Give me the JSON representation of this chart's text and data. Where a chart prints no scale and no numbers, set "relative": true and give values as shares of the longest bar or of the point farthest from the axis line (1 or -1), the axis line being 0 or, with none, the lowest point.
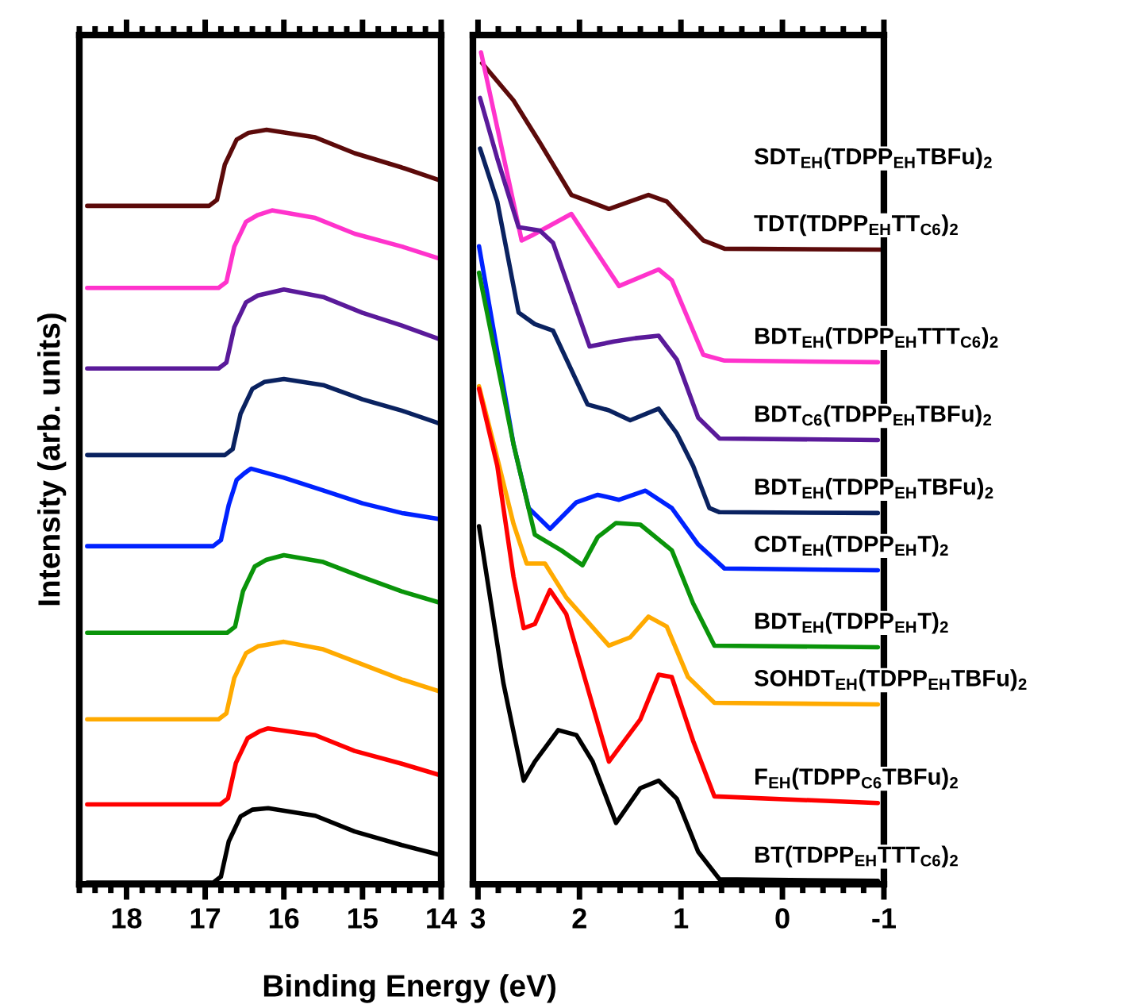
{
  "chart_data": [
    {
      "type": "line",
      "relative": true,
      "xlim": [
        18.6,
        14
      ],
      "xticks": [
        18,
        17,
        16,
        15,
        14
      ],
      "tick_labels": "x",
      "xlabel": "Binding Energy (eV)",
      "ylabel": "Intensity (arb. units)",
      "legend": false,
      "grid": false,
      "series": [
        {
          "color": "#5c0a0a",
          "x": [
            18.5,
            16.95,
            16.85,
            16.75,
            16.6,
            16.45,
            16.22,
            15.6,
            15.1,
            14.5,
            14.02
          ],
          "values": [
            0.899,
            0.899,
            0.907,
            0.954,
            0.987,
            0.996,
            1.0,
            0.99,
            0.969,
            0.95,
            0.933
          ]
        },
        {
          "color": "#ff33cc",
          "x": [
            18.5,
            16.83,
            16.73,
            16.63,
            16.48,
            16.33,
            16.15,
            15.6,
            15.1,
            14.5,
            14.02
          ],
          "values": [
            0.79,
            0.79,
            0.798,
            0.845,
            0.878,
            0.887,
            0.893,
            0.883,
            0.862,
            0.845,
            0.829
          ]
        },
        {
          "color": "#5a1a9a",
          "x": [
            18.5,
            16.83,
            16.73,
            16.63,
            16.48,
            16.33,
            16.0,
            15.5,
            15.0,
            14.5,
            14.02
          ],
          "values": [
            0.683,
            0.683,
            0.691,
            0.738,
            0.771,
            0.78,
            0.788,
            0.778,
            0.757,
            0.74,
            0.722
          ]
        },
        {
          "color": "#0a2260",
          "x": [
            18.5,
            16.75,
            16.65,
            16.55,
            16.4,
            16.25,
            16.0,
            15.5,
            15.0,
            14.5,
            14.02
          ],
          "values": [
            0.568,
            0.568,
            0.576,
            0.623,
            0.656,
            0.665,
            0.669,
            0.661,
            0.642,
            0.627,
            0.61
          ]
        },
        {
          "color": "#0022ff",
          "x": [
            18.5,
            16.9,
            16.8,
            16.7,
            16.6,
            16.5,
            16.42,
            16.0,
            15.5,
            15.0,
            14.5,
            14.02
          ],
          "values": [
            0.447,
            0.447,
            0.455,
            0.502,
            0.535,
            0.544,
            0.55,
            0.538,
            0.521,
            0.504,
            0.491,
            0.483
          ]
        },
        {
          "color": "#0a940a",
          "x": [
            18.5,
            16.72,
            16.62,
            16.52,
            16.37,
            16.22,
            16.0,
            15.5,
            15.0,
            14.5,
            14.02
          ],
          "values": [
            0.332,
            0.332,
            0.34,
            0.387,
            0.42,
            0.429,
            0.435,
            0.426,
            0.406,
            0.387,
            0.372
          ]
        },
        {
          "color": "#ffaa00",
          "x": [
            18.5,
            16.83,
            16.73,
            16.63,
            16.48,
            16.33,
            16.0,
            15.5,
            15.0,
            14.5,
            14.02
          ],
          "values": [
            0.217,
            0.217,
            0.225,
            0.272,
            0.305,
            0.314,
            0.32,
            0.31,
            0.29,
            0.27,
            0.254
          ]
        },
        {
          "color": "#ff0000",
          "x": [
            18.5,
            16.81,
            16.71,
            16.61,
            16.46,
            16.31,
            16.2,
            15.6,
            15.1,
            14.5,
            14.02
          ],
          "values": [
            0.104,
            0.104,
            0.112,
            0.159,
            0.192,
            0.201,
            0.205,
            0.196,
            0.175,
            0.158,
            0.143
          ]
        },
        {
          "color": "#000000",
          "x": [
            18.5,
            16.9,
            16.8,
            16.7,
            16.55,
            16.4,
            16.2,
            15.6,
            15.1,
            14.5,
            14.02
          ],
          "values": [
            0,
            0,
            0.008,
            0.055,
            0.088,
            0.097,
            0.099,
            0.089,
            0.068,
            0.05,
            0.037
          ]
        }
      ]
    },
    {
      "type": "line",
      "relative": true,
      "xlim": [
        3.05,
        -1
      ],
      "xticks": [
        3,
        2,
        1,
        0,
        -1
      ],
      "tick_labels": "x",
      "legend": false,
      "grid": false,
      "annotations": [
        "SDT$_{EH}$(TDPP$_{EH}$TBFu)$_{2}$"
      ],
      "series": [
        {
          "name": "TDT(TDPP$_{EH}$TT$_{C6}$)$_{2}$",
          "color": "#5c0a0a",
          "x": [
            2.96,
            2.65,
            2.39,
            2.08,
            1.71,
            1.32,
            1.14,
            0.78,
            0.57,
            -0.97
          ],
          "values": [
            0.987,
            0.942,
            0.891,
            0.828,
            0.811,
            0.828,
            0.82,
            0.773,
            0.763,
            0.762
          ]
        },
        {
          "name": "BDT$_{EH}$(TDPP$_{EH}$TTT$_{C6}$)$_{2}$",
          "color": "#ff33cc",
          "x": [
            2.97,
            2.57,
            2.47,
            2.08,
            1.61,
            1.22,
            1.09,
            0.78,
            0.57,
            -0.94
          ],
          "values": [
            1.0,
            0.773,
            0.779,
            0.805,
            0.718,
            0.738,
            0.725,
            0.635,
            0.628,
            0.626
          ]
        },
        {
          "name": "BDT$_{C6}$(TDPP$_{EH}$TBFu)$_{2}$",
          "color": "#5a1a9a",
          "x": [
            2.98,
            2.81,
            2.6,
            2.39,
            2.26,
            1.9,
            1.66,
            1.45,
            1.22,
            1.04,
            0.83,
            0.62,
            -0.94
          ],
          "values": [
            0.945,
            0.872,
            0.789,
            0.785,
            0.77,
            0.645,
            0.651,
            0.655,
            0.658,
            0.629,
            0.559,
            0.534,
            0.532
          ]
        },
        {
          "name": "BDT$_{EH}$(TDPP$_{EH}$TBFu)$_{2}$",
          "color": "#0a2260",
          "x": [
            2.98,
            2.81,
            2.6,
            2.44,
            2.26,
            1.92,
            1.71,
            1.5,
            1.22,
            1.04,
            0.88,
            0.72,
            0.62,
            -0.94
          ],
          "values": [
            0.884,
            0.82,
            0.686,
            0.672,
            0.664,
            0.575,
            0.568,
            0.556,
            0.57,
            0.54,
            0.501,
            0.45,
            0.445,
            0.444
          ]
        },
        {
          "name": "CDT$_{EH}$(TDPP$_{EH}$T)$_{2}$",
          "color": "#0022ff",
          "x": [
            2.99,
            2.65,
            2.5,
            2.29,
            2.03,
            1.82,
            1.61,
            1.35,
            1.09,
            0.83,
            0.57,
            -0.94
          ],
          "values": [
            0.766,
            0.527,
            0.45,
            0.425,
            0.457,
            0.466,
            0.46,
            0.471,
            0.45,
            0.406,
            0.377,
            0.375
          ]
        },
        {
          "name": "BDT$_{EH}$(TDPP$_{EH}$T)$_{2}$",
          "color": "#0a940a",
          "x": [
            2.99,
            2.65,
            2.44,
            2.18,
            1.97,
            1.82,
            1.64,
            1.4,
            1.09,
            0.88,
            0.67,
            -0.94
          ],
          "values": [
            0.734,
            0.527,
            0.418,
            0.399,
            0.381,
            0.415,
            0.432,
            0.43,
            0.399,
            0.335,
            0.284,
            0.282
          ]
        },
        {
          "name": "SOHDT$_{EH}$(TDPP$_{EH}$TBFu)$_{2}$",
          "color": "#ffaa00",
          "x": [
            2.99,
            2.83,
            2.65,
            2.52,
            2.34,
            2.13,
            1.71,
            1.5,
            1.32,
            1.14,
            0.93,
            0.67,
            -0.94
          ],
          "values": [
            0.597,
            0.52,
            0.431,
            0.383,
            0.383,
            0.342,
            0.284,
            0.294,
            0.319,
            0.307,
            0.246,
            0.215,
            0.213
          ]
        },
        {
          "name": "F$_{EH}$(TDPP$_{C6}$TBFu)$_{2}$",
          "color": "#ff0000",
          "x": [
            2.99,
            2.81,
            2.65,
            2.55,
            2.44,
            2.29,
            2.13,
            1.71,
            1.4,
            1.22,
            1.09,
            0.88,
            0.67,
            -0.94
          ],
          "values": [
            0.594,
            0.501,
            0.367,
            0.305,
            0.31,
            0.351,
            0.322,
            0.144,
            0.195,
            0.249,
            0.246,
            0.169,
            0.102,
            0.094
          ]
        },
        {
          "name": "BT(TDPP$_{EH}$TTT$_{C6}$)$_{2}$",
          "color": "#000000",
          "x": [
            2.99,
            2.75,
            2.55,
            2.44,
            2.21,
            2.03,
            1.87,
            1.64,
            1.4,
            1.22,
            1.04,
            0.83,
            0.62,
            -0.94
          ],
          "values": [
            0.428,
            0.239,
            0.121,
            0.144,
            0.182,
            0.176,
            0.144,
            0.07,
            0.112,
            0.121,
            0.099,
            0.035,
            0.002,
            0
          ]
        }
      ]
    }
  ]
}
